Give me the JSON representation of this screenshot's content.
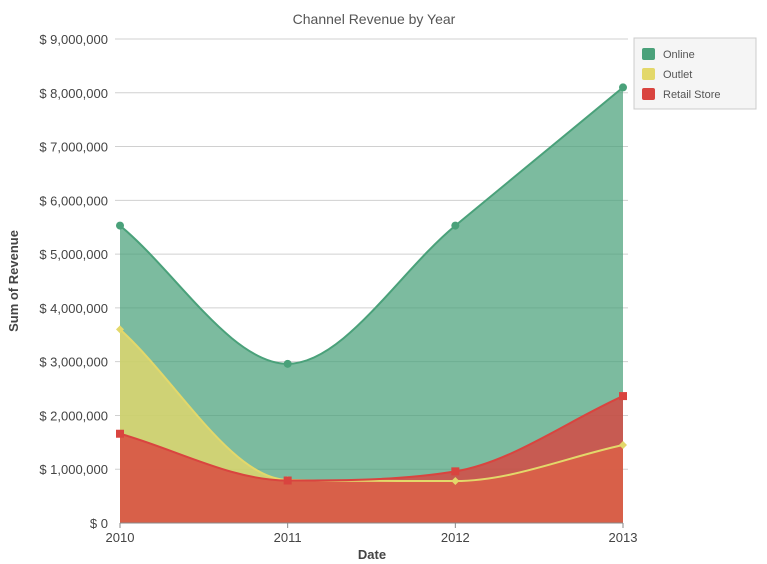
{
  "chart_data": {
    "type": "area",
    "title": "Channel Revenue by Year",
    "xlabel": "Date",
    "ylabel": "Sum of Revenue",
    "categories": [
      "2010",
      "2011",
      "2012",
      "2013"
    ],
    "ylim": [
      0,
      9000000
    ],
    "yticks": [
      0,
      1000000,
      2000000,
      3000000,
      4000000,
      5000000,
      6000000,
      7000000,
      8000000,
      9000000
    ],
    "ytick_labels": [
      "$ 0",
      "$ 1,000,000",
      "$ 2,000,000",
      "$ 3,000,000",
      "$ 4,000,000",
      "$ 5,000,000",
      "$ 6,000,000",
      "$ 7,000,000",
      "$ 8,000,000",
      "$ 9,000,000"
    ],
    "grid": true,
    "legend_position": "top-right",
    "series": [
      {
        "name": "Online",
        "values": [
          5530000,
          2960000,
          5530000,
          8100000
        ],
        "color": "#4aa17a",
        "marker": "circle"
      },
      {
        "name": "Outlet",
        "values": [
          3600000,
          800000,
          780000,
          1450000
        ],
        "color": "#e3d86a",
        "marker": "diamond"
      },
      {
        "name": "Retail Store",
        "values": [
          1660000,
          790000,
          960000,
          2360000
        ],
        "color": "#d9443f",
        "marker": "square"
      }
    ]
  }
}
